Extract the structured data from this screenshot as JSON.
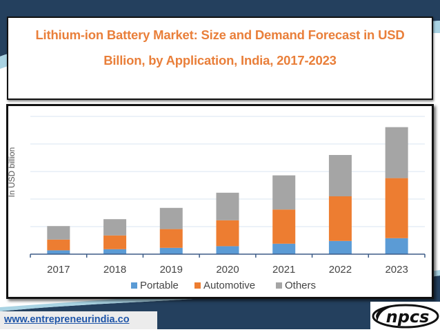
{
  "title": {
    "line1": "Lithium-ion Battery Market: Size and Demand Forecast in USD",
    "line2": "Billion, by Application, India, 2017-2023"
  },
  "footer": {
    "website": "www.entrepreneurindia.co",
    "logo_text": "npcs"
  },
  "colors": {
    "title": "#e97f3a",
    "navy": "#24405e",
    "portable": "#5b9bd5",
    "automotive": "#ed7d31",
    "others": "#a5a5a5"
  },
  "chart_data": {
    "type": "bar",
    "stacked": true,
    "title": "Lithium-ion Battery Market: Size and Demand Forecast in USD Billion, by Application, India, 2017-2023",
    "xlabel": "",
    "ylabel": "In USD billion",
    "categories": [
      "2017",
      "2018",
      "2019",
      "2020",
      "2021",
      "2022",
      "2023"
    ],
    "series": [
      {
        "name": "Portable",
        "color": "#5b9bd5",
        "values": [
          0.14,
          0.18,
          0.23,
          0.29,
          0.38,
          0.48,
          0.58
        ]
      },
      {
        "name": "Automotive",
        "color": "#ed7d31",
        "values": [
          0.39,
          0.5,
          0.68,
          0.94,
          1.24,
          1.62,
          2.18
        ]
      },
      {
        "name": "Others",
        "color": "#a5a5a5",
        "values": [
          0.49,
          0.59,
          0.77,
          1.0,
          1.24,
          1.5,
          1.85
        ]
      }
    ],
    "ylim": [
      0,
      5
    ],
    "y_tick_labels_shown": false,
    "grid": true,
    "legend": "bottom"
  }
}
